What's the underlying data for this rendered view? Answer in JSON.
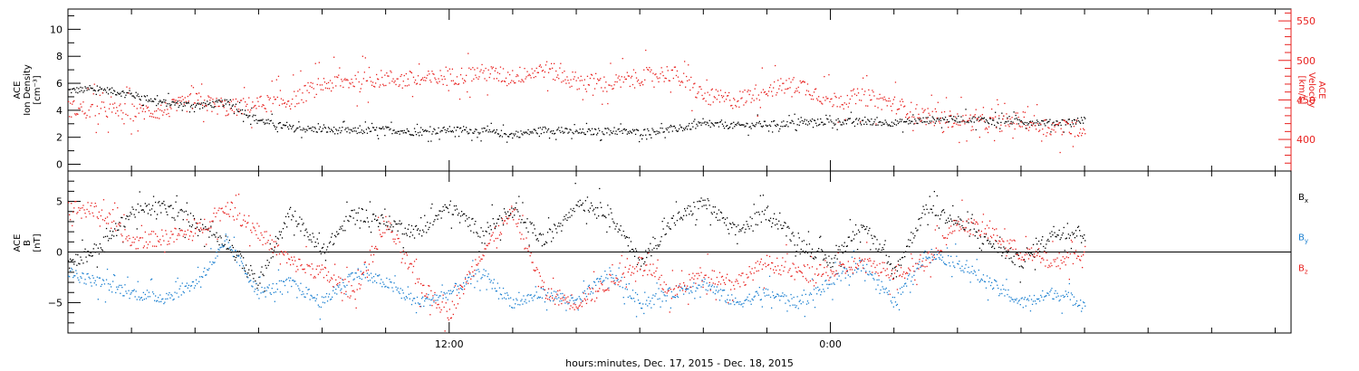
{
  "xaxis": {
    "title": "hours:minutes, Dec. 17, 2015 - Dec. 18, 2015",
    "tick_labels": [
      {
        "label": "12:00",
        "hour": 12
      },
      {
        "label": "0:00",
        "hour": 24
      }
    ],
    "range_hours": [
      0,
      38.5
    ],
    "minor_tick_step_hours": 2
  },
  "chart_data": [
    {
      "type": "scatter",
      "panel": "top",
      "ylabel_left": [
        "ACE",
        "Ion Density",
        "[cm⁻³]"
      ],
      "ylabel_right": [
        "ACE",
        "Velocity",
        "[km/s]"
      ],
      "ylim_left": [
        -0.5,
        11.5
      ],
      "left_ticks": [
        0,
        2,
        4,
        6,
        8,
        10
      ],
      "ylim_right": [
        360,
        565
      ],
      "right_ticks": [
        400,
        450,
        500,
        550
      ],
      "series": [
        {
          "name": "Ion Density",
          "axis": "left",
          "color": "#000000",
          "x": [
            0,
            1,
            2,
            3,
            4,
            5,
            6,
            7,
            8,
            9,
            10,
            11,
            12,
            13,
            14,
            15,
            16,
            17,
            18,
            19,
            20,
            21,
            22,
            23,
            24,
            25,
            26,
            27,
            28,
            29,
            30,
            31,
            32
          ],
          "y": [
            5.5,
            5.6,
            5.2,
            4.6,
            4.4,
            4.6,
            3.3,
            2.7,
            2.6,
            2.5,
            2.6,
            2.4,
            2.6,
            2.5,
            2.2,
            2.6,
            2.4,
            2.5,
            2.4,
            2.6,
            3.0,
            2.9,
            3.0,
            3.1,
            3.2,
            3.2,
            3.1,
            3.3,
            3.4,
            3.3,
            3.2,
            3.1,
            3.3
          ]
        },
        {
          "name": "Velocity",
          "axis": "right",
          "color": "#e8211f",
          "x": [
            0,
            1,
            2,
            3,
            4,
            5,
            6,
            7,
            8,
            9,
            10,
            11,
            12,
            13,
            14,
            15,
            16,
            17,
            18,
            19,
            20,
            21,
            22,
            23,
            24,
            25,
            26,
            27,
            28,
            29,
            30,
            31,
            32
          ],
          "y": [
            440,
            438,
            435,
            437,
            450,
            440,
            445,
            450,
            470,
            475,
            478,
            475,
            480,
            485,
            480,
            490,
            475,
            470,
            480,
            485,
            455,
            450,
            465,
            470,
            450,
            455,
            445,
            430,
            425,
            420,
            425,
            415,
            415
          ]
        }
      ]
    },
    {
      "type": "scatter",
      "panel": "bottom",
      "ylabel_left": [
        "ACE",
        "B",
        "[nT]"
      ],
      "ylim": [
        -8,
        8
      ],
      "ticks": [
        -5,
        0,
        5
      ],
      "zero_line": true,
      "legend": [
        {
          "label": "B",
          "sub": "x",
          "color": "#000000"
        },
        {
          "label": "B",
          "sub": "y",
          "color": "#1a7fd0"
        },
        {
          "label": "B",
          "sub": "z",
          "color": "#e8211f"
        }
      ],
      "series": [
        {
          "name": "Bx",
          "color": "#000000",
          "x": [
            0,
            1,
            2,
            3,
            4,
            5,
            6,
            7,
            8,
            9,
            10,
            11,
            12,
            13,
            14,
            15,
            16,
            17,
            18,
            19,
            20,
            21,
            22,
            23,
            24,
            25,
            26,
            27,
            28,
            29,
            30,
            31,
            32
          ],
          "y": [
            -1,
            0.5,
            4,
            4.5,
            3,
            1,
            -3,
            4,
            0,
            4,
            3,
            2,
            4.5,
            2,
            4,
            1,
            5,
            4,
            -1,
            3,
            5,
            2,
            4,
            1,
            -1,
            3,
            -2,
            4.5,
            3,
            1,
            -1,
            2,
            2
          ]
        },
        {
          "name": "By",
          "color": "#1a7fd0",
          "x": [
            0,
            1,
            2,
            3,
            4,
            5,
            6,
            7,
            8,
            9,
            10,
            11,
            12,
            13,
            14,
            15,
            16,
            17,
            18,
            19,
            20,
            21,
            22,
            23,
            24,
            25,
            26,
            27,
            28,
            29,
            30,
            31,
            32
          ],
          "y": [
            -2,
            -3,
            -4,
            -4.5,
            -3,
            1,
            -4,
            -3,
            -5,
            -2,
            -3,
            -5,
            -4,
            -2,
            -5,
            -4,
            -5,
            -2,
            -5,
            -4,
            -3,
            -5,
            -4,
            -5,
            -3,
            -1,
            -5,
            0,
            -1,
            -3,
            -5,
            -4,
            -5
          ]
        },
        {
          "name": "Bz",
          "color": "#e8211f",
          "x": [
            0,
            1,
            2,
            3,
            4,
            5,
            6,
            7,
            8,
            9,
            10,
            11,
            12,
            13,
            14,
            15,
            16,
            17,
            18,
            19,
            20,
            21,
            22,
            23,
            24,
            25,
            26,
            27,
            28,
            29,
            30,
            31,
            32
          ],
          "y": [
            4.5,
            4,
            1,
            1.5,
            2,
            4.5,
            2,
            -1,
            -2,
            -4,
            3,
            -3,
            -6,
            0,
            4,
            -4,
            -5,
            -3,
            -1,
            -4,
            -2,
            -3,
            -1,
            -2,
            -2,
            -1,
            -2,
            -1,
            3,
            2,
            0,
            -1,
            0
          ]
        }
      ]
    }
  ]
}
